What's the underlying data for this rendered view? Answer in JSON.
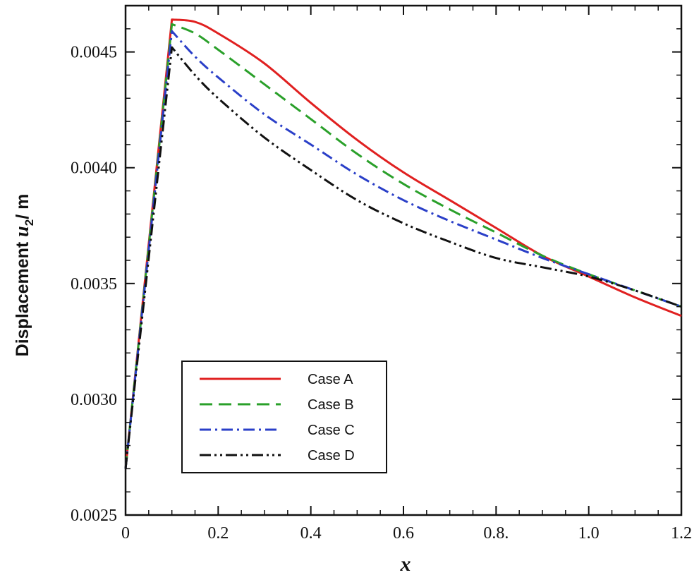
{
  "chart_data": {
    "type": "line",
    "title": "",
    "xlabel": "x",
    "ylabel": {
      "prefix": "Displacement ",
      "symbol": "u",
      "subscript": "2",
      "suffix": "/ m"
    },
    "xlim": [
      0,
      1.2
    ],
    "ylim": [
      0.0025,
      0.0047
    ],
    "x_ticks": [
      {
        "value": 0,
        "label": "0"
      },
      {
        "value": 0.2,
        "label": "0.2"
      },
      {
        "value": 0.4,
        "label": "0.4"
      },
      {
        "value": 0.6,
        "label": "0.6"
      },
      {
        "value": 0.8,
        "label": "0.8."
      },
      {
        "value": 1.0,
        "label": "1.0"
      },
      {
        "value": 1.2,
        "label": "1.2"
      }
    ],
    "y_ticks": [
      {
        "value": 0.0025,
        "label": "0.0025"
      },
      {
        "value": 0.003,
        "label": "0.0030"
      },
      {
        "value": 0.0035,
        "label": "0.0035"
      },
      {
        "value": 0.004,
        "label": "0.0040"
      },
      {
        "value": 0.0045,
        "label": "0.0045"
      }
    ],
    "legend_position": "bottom-left",
    "series": [
      {
        "name": "Case A",
        "color": "#e02020",
        "dash": "solid",
        "points": [
          [
            0,
            0.0027
          ],
          [
            0.1,
            0.00464
          ],
          [
            0.15,
            0.00463
          ],
          [
            0.2,
            0.00458
          ],
          [
            0.3,
            0.00445
          ],
          [
            0.4,
            0.00428
          ],
          [
            0.5,
            0.00412
          ],
          [
            0.6,
            0.00398
          ],
          [
            0.7,
            0.00386
          ],
          [
            0.8,
            0.00374
          ],
          [
            0.9,
            0.00362
          ],
          [
            1.0,
            0.00353
          ],
          [
            1.1,
            0.00344
          ],
          [
            1.2,
            0.00336
          ]
        ]
      },
      {
        "name": "Case B",
        "color": "#2aa02a",
        "dash": "dashed",
        "points": [
          [
            0,
            0.0027
          ],
          [
            0.1,
            0.00462
          ],
          [
            0.15,
            0.00458
          ],
          [
            0.2,
            0.00451
          ],
          [
            0.3,
            0.00436
          ],
          [
            0.4,
            0.00421
          ],
          [
            0.5,
            0.00406
          ],
          [
            0.6,
            0.00393
          ],
          [
            0.7,
            0.00382
          ],
          [
            0.8,
            0.00372
          ],
          [
            0.9,
            0.00362
          ],
          [
            1.0,
            0.00354
          ],
          [
            1.1,
            0.00347
          ],
          [
            1.2,
            0.0034
          ]
        ]
      },
      {
        "name": "Case C",
        "color": "#2a3fc8",
        "dash": "dashdot",
        "points": [
          [
            0,
            0.0027
          ],
          [
            0.1,
            0.00459
          ],
          [
            0.15,
            0.00448
          ],
          [
            0.2,
            0.00439
          ],
          [
            0.3,
            0.00423
          ],
          [
            0.4,
            0.0041
          ],
          [
            0.5,
            0.00397
          ],
          [
            0.6,
            0.00386
          ],
          [
            0.7,
            0.00377
          ],
          [
            0.8,
            0.00369
          ],
          [
            0.9,
            0.00361
          ],
          [
            1.0,
            0.00354
          ],
          [
            1.1,
            0.00347
          ],
          [
            1.2,
            0.0034
          ]
        ]
      },
      {
        "name": "Case D",
        "color": "#111111",
        "dash": "dashdotdot",
        "points": [
          [
            0,
            0.0027
          ],
          [
            0.1,
            0.00452
          ],
          [
            0.15,
            0.0044
          ],
          [
            0.2,
            0.0043
          ],
          [
            0.3,
            0.00413
          ],
          [
            0.4,
            0.00399
          ],
          [
            0.5,
            0.00386
          ],
          [
            0.6,
            0.00376
          ],
          [
            0.7,
            0.00368
          ],
          [
            0.8,
            0.00361
          ],
          [
            0.9,
            0.00357
          ],
          [
            1.0,
            0.00353
          ],
          [
            1.1,
            0.00347
          ],
          [
            1.2,
            0.0034
          ]
        ]
      }
    ]
  }
}
